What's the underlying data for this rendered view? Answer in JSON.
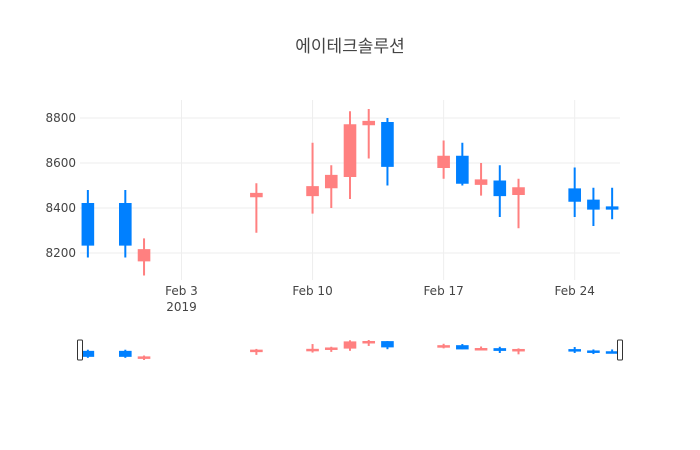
{
  "chart_data": {
    "type": "candlestick",
    "title": "에이테크솔루션",
    "xlabel": "",
    "ylabel": "",
    "x_ticks": [
      {
        "date": "2019-02-03",
        "label": "Feb 3",
        "sublabel": "2019"
      },
      {
        "date": "2019-02-10",
        "label": "Feb 10",
        "sublabel": ""
      },
      {
        "date": "2019-02-17",
        "label": "Feb 17",
        "sublabel": ""
      },
      {
        "date": "2019-02-24",
        "label": "Feb 24",
        "sublabel": ""
      }
    ],
    "xlim": [
      "2019-01-29",
      "2019-02-26"
    ],
    "y_ticks": [
      8200,
      8400,
      8600,
      8800
    ],
    "ylim": [
      8080,
      8880
    ],
    "grid": true,
    "rangeslider": true,
    "increasing_color": "#FF8080",
    "decreasing_color": "#0080FF",
    "candles": [
      {
        "date": "2019-01-29",
        "open": 8420,
        "high": 8480,
        "low": 8180,
        "close": 8235
      },
      {
        "date": "2019-01-31",
        "open": 8420,
        "high": 8480,
        "low": 8180,
        "close": 8235
      },
      {
        "date": "2019-02-01",
        "open": 8165,
        "high": 8265,
        "low": 8100,
        "close": 8215
      },
      {
        "date": "2019-02-07",
        "open": 8450,
        "high": 8510,
        "low": 8290,
        "close": 8465
      },
      {
        "date": "2019-02-10",
        "open": 8455,
        "high": 8690,
        "low": 8375,
        "close": 8495
      },
      {
        "date": "2019-02-11",
        "open": 8490,
        "high": 8590,
        "low": 8400,
        "close": 8545
      },
      {
        "date": "2019-02-12",
        "open": 8540,
        "high": 8830,
        "low": 8440,
        "close": 8770
      },
      {
        "date": "2019-02-13",
        "open": 8770,
        "high": 8840,
        "low": 8620,
        "close": 8785
      },
      {
        "date": "2019-02-14",
        "open": 8780,
        "high": 8800,
        "low": 8500,
        "close": 8585
      },
      {
        "date": "2019-02-17",
        "open": 8580,
        "high": 8700,
        "low": 8530,
        "close": 8630
      },
      {
        "date": "2019-02-18",
        "open": 8630,
        "high": 8690,
        "low": 8500,
        "close": 8510
      },
      {
        "date": "2019-02-19",
        "open": 8505,
        "high": 8600,
        "low": 8455,
        "close": 8525
      },
      {
        "date": "2019-02-20",
        "open": 8520,
        "high": 8590,
        "low": 8360,
        "close": 8455
      },
      {
        "date": "2019-02-21",
        "open": 8460,
        "high": 8530,
        "low": 8310,
        "close": 8490
      },
      {
        "date": "2019-02-24",
        "open": 8485,
        "high": 8580,
        "low": 8360,
        "close": 8430
      },
      {
        "date": "2019-02-25",
        "open": 8435,
        "high": 8490,
        "low": 8320,
        "close": 8395
      },
      {
        "date": "2019-02-26",
        "open": 8405,
        "high": 8490,
        "low": 8350,
        "close": 8395
      }
    ]
  }
}
